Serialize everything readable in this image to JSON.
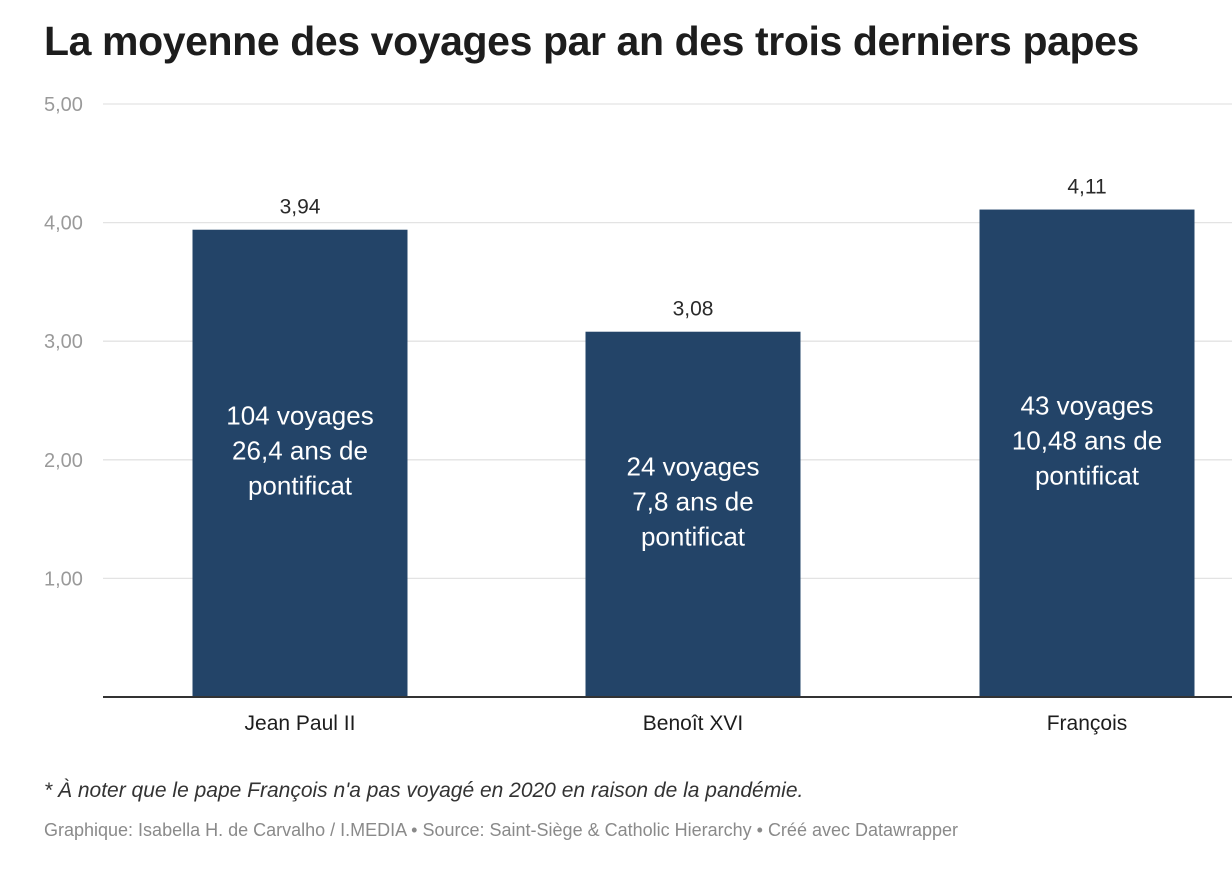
{
  "title": "La moyenne des voyages par an des trois derniers papes",
  "note": "* À noter que le pape François n'a pas voyagé en 2020 en raison de la pandémie.",
  "credits": "Graphique: Isabella H. de Carvalho / I.MEDIA • Source: Saint-Siège & Catholic Hierarchy • Créé avec Datawrapper",
  "colors": {
    "bar": "#234468",
    "grid": "#e3e3e3",
    "axis_line": "#333333",
    "tick_label": "#9a9a9a",
    "value_label": "#2a2a2a",
    "inner_label": "#ffffff"
  },
  "chart_data": {
    "type": "bar",
    "title": "La moyenne des voyages par an des trois derniers papes",
    "xlabel": "",
    "ylabel": "",
    "ylim": [
      0,
      5
    ],
    "yticks": [
      1,
      2,
      3,
      4,
      5
    ],
    "ytick_labels": [
      "1,00",
      "2,00",
      "3,00",
      "4,00",
      "5,00"
    ],
    "grid": true,
    "categories": [
      "Jean Paul II",
      "Benoît XVI",
      "François"
    ],
    "values": [
      3.94,
      3.08,
      4.11
    ],
    "value_labels": [
      "3,94",
      "3,08",
      "4,11"
    ],
    "bar_annotations": [
      [
        "104 voyages",
        "26,4 ans de",
        "pontificat"
      ],
      [
        "24 voyages",
        "7,8 ans de",
        "pontificat"
      ],
      [
        "43 voyages",
        "10,48 ans de",
        "pontificat"
      ]
    ]
  }
}
